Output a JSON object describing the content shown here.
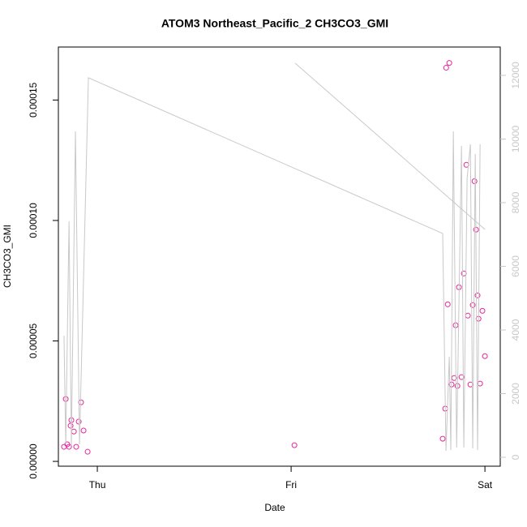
{
  "chart_data": {
    "type": "scatter",
    "title": "ATOM3 Northeast_Pacific_2 CH3CO3_GMI",
    "x_label": "Date",
    "y_label": "CH3CO3_GMI",
    "xlim": [
      -0.201,
      2.079
    ],
    "xticks": [
      {
        "value": 0,
        "label": "Thu"
      },
      {
        "value": 1,
        "label": "Fri"
      },
      {
        "value": 2,
        "label": "Sat"
      }
    ],
    "ylim": [
      -2e-06,
      0.000172
    ],
    "yticks": [
      {
        "value": 0,
        "label": "0.00000"
      },
      {
        "value": 5e-05,
        "label": "0.00005"
      },
      {
        "value": 0.0001,
        "label": "0.00010"
      },
      {
        "value": 0.00015,
        "label": "0.00015"
      }
    ],
    "y2lim": [
      -280,
      12890
    ],
    "y2ticks": [
      0,
      2000,
      4000,
      6000,
      8000,
      10000,
      12000
    ],
    "series": [
      {
        "color": "#e8269a",
        "x": [
          -0.172,
          -0.163,
          -0.155,
          -0.146,
          -0.138,
          -0.134,
          -0.121,
          -0.109,
          -0.096,
          -0.084,
          -0.071,
          -0.05,
          1.017,
          1.782,
          1.795,
          1.8,
          1.808,
          1.816,
          1.828,
          1.841,
          1.849,
          1.858,
          1.866,
          1.879,
          1.891,
          1.904,
          1.912,
          1.925,
          1.937,
          1.946,
          1.954,
          1.962,
          1.967,
          1.975,
          1.987,
          2.0
        ],
        "values": [
          6.05e-06,
          2.59e-05,
          7.1e-06,
          6.05e-06,
          1.48e-05,
          1.71e-05,
          1.24e-05,
          6.05e-06,
          1.65e-05,
          2.45e-05,
          1.28e-05,
          4e-06,
          6.7e-06,
          9.4e-06,
          2.19e-05,
          0.0001634,
          6.52e-05,
          0.0001654,
          3.19e-05,
          3.46e-05,
          5.65e-05,
          3.13e-05,
          7.23e-05,
          3.5e-05,
          7.8e-05,
          0.0001231,
          6.05e-05,
          3.19e-05,
          6.49e-05,
          0.0001163,
          9.62e-05,
          6.89e-05,
          5.92e-05,
          3.23e-05,
          6.25e-05,
          4.37e-05
        ]
      },
      {
        "axis": "y2",
        "color": "#c8c8c8",
        "type": "line",
        "x": [
          -0.172,
          -0.163,
          -0.146,
          -0.134,
          -0.113,
          -0.092,
          -0.046,
          1.782,
          1.799,
          1.816,
          1.824,
          1.837,
          1.854,
          1.879,
          1.891,
          1.908,
          1.925,
          1.937,
          1.95,
          1.962,
          1.975,
          null,
          1.021,
          2.0
        ],
        "values": [
          3822,
          408,
          7414,
          357,
          10242,
          408,
          11924,
          7032,
          204,
          3159,
          229,
          10242,
          306,
          9783,
          306,
          8764,
          9834,
          280,
          9529,
          229,
          9834,
          null,
          12382,
          7159
        ]
      }
    ]
  }
}
